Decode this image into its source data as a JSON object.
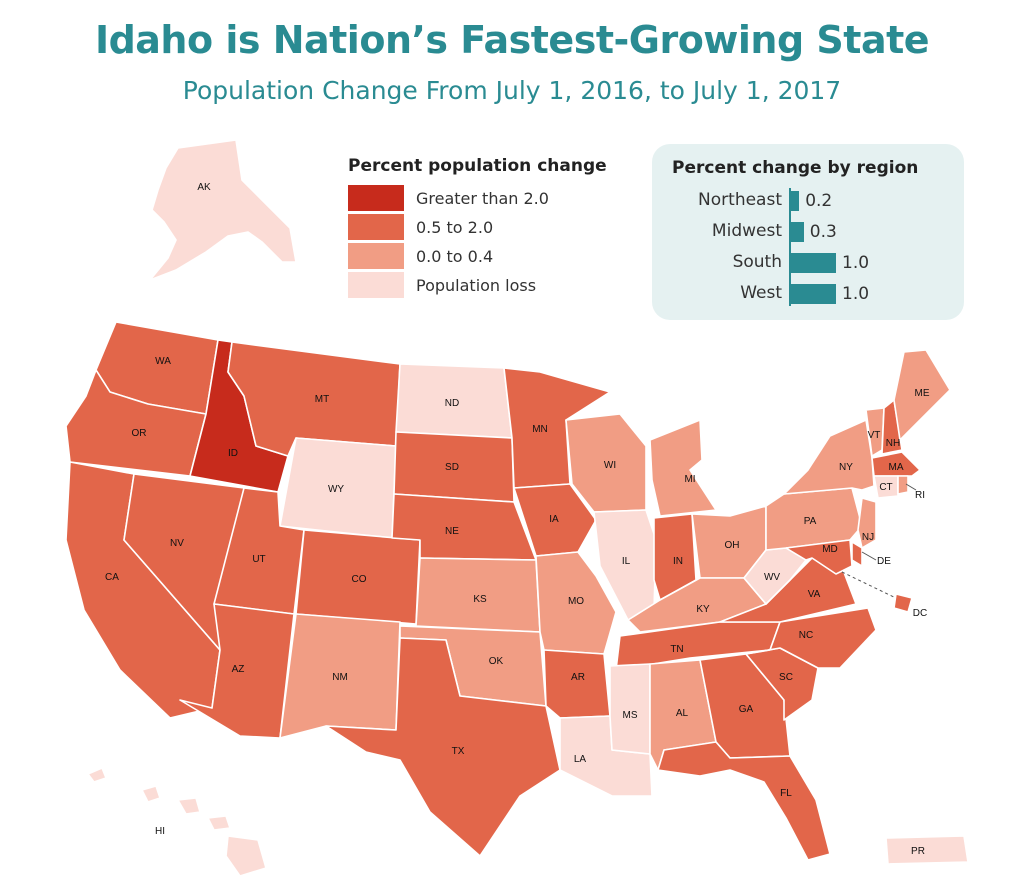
{
  "title": "Idaho is Nation’s Fastest-Growing State",
  "subtitle": "Population Change From July 1, 2016, to July 1, 2017",
  "colors": {
    "greater_than_2": "#c72b1c",
    "half_to_2": "#e2664a",
    "zero_to_04": "#f19d84",
    "loss": "#fbdcd6",
    "accent": "#2a8b92"
  },
  "legend": {
    "title": "Percent population change",
    "items": [
      {
        "label": "Greater than 2.0",
        "color": "#c72b1c"
      },
      {
        "label": "0.5 to 2.0",
        "color": "#e2664a"
      },
      {
        "label": "0.0 to 0.4",
        "color": "#f19d84"
      },
      {
        "label": "Population loss",
        "color": "#fbdcd6"
      }
    ]
  },
  "regions": {
    "title": "Percent change by region",
    "items": [
      {
        "name": "Northeast",
        "value": "0.2",
        "pct": 0.2
      },
      {
        "name": "Midwest",
        "value": "0.3",
        "pct": 0.3
      },
      {
        "name": "South",
        "value": "1.0",
        "pct": 1.0
      },
      {
        "name": "West",
        "value": "1.0",
        "pct": 1.0
      }
    ]
  },
  "states": {
    "AK": {
      "label": "AK",
      "class": "loss"
    },
    "HI": {
      "label": "HI",
      "class": "loss"
    },
    "WA": {
      "label": "WA",
      "class": "half_to_2"
    },
    "OR": {
      "label": "OR",
      "class": "half_to_2"
    },
    "CA": {
      "label": "CA",
      "class": "half_to_2"
    },
    "ID": {
      "label": "ID",
      "class": "greater_than_2"
    },
    "NV": {
      "label": "NV",
      "class": "half_to_2"
    },
    "MT": {
      "label": "MT",
      "class": "half_to_2"
    },
    "WY": {
      "label": "WY",
      "class": "loss"
    },
    "UT": {
      "label": "UT",
      "class": "half_to_2"
    },
    "AZ": {
      "label": "AZ",
      "class": "half_to_2"
    },
    "CO": {
      "label": "CO",
      "class": "half_to_2"
    },
    "NM": {
      "label": "NM",
      "class": "zero_to_04"
    },
    "ND": {
      "label": "ND",
      "class": "loss"
    },
    "SD": {
      "label": "SD",
      "class": "half_to_2"
    },
    "NE": {
      "label": "NE",
      "class": "half_to_2"
    },
    "KS": {
      "label": "KS",
      "class": "zero_to_04"
    },
    "OK": {
      "label": "OK",
      "class": "zero_to_04"
    },
    "TX": {
      "label": "TX",
      "class": "half_to_2"
    },
    "MN": {
      "label": "MN",
      "class": "half_to_2"
    },
    "IA": {
      "label": "IA",
      "class": "half_to_2"
    },
    "MO": {
      "label": "MO",
      "class": "zero_to_04"
    },
    "AR": {
      "label": "AR",
      "class": "half_to_2"
    },
    "LA": {
      "label": "LA",
      "class": "loss"
    },
    "WI": {
      "label": "WI",
      "class": "zero_to_04"
    },
    "IL": {
      "label": "IL",
      "class": "loss"
    },
    "MI": {
      "label": "MI",
      "class": "zero_to_04"
    },
    "IN": {
      "label": "IN",
      "class": "half_to_2"
    },
    "OH": {
      "label": "OH",
      "class": "zero_to_04"
    },
    "KY": {
      "label": "KY",
      "class": "zero_to_04"
    },
    "TN": {
      "label": "TN",
      "class": "half_to_2"
    },
    "MS": {
      "label": "MS",
      "class": "loss"
    },
    "AL": {
      "label": "AL",
      "class": "zero_to_04"
    },
    "GA": {
      "label": "GA",
      "class": "half_to_2"
    },
    "FL": {
      "label": "FL",
      "class": "half_to_2"
    },
    "SC": {
      "label": "SC",
      "class": "half_to_2"
    },
    "NC": {
      "label": "NC",
      "class": "half_to_2"
    },
    "VA": {
      "label": "VA",
      "class": "half_to_2"
    },
    "WV": {
      "label": "WV",
      "class": "loss"
    },
    "PA": {
      "label": "PA",
      "class": "zero_to_04"
    },
    "NY": {
      "label": "NY",
      "class": "zero_to_04"
    },
    "VT": {
      "label": "VT",
      "class": "zero_to_04"
    },
    "NH": {
      "label": "NH",
      "class": "half_to_2"
    },
    "ME": {
      "label": "ME",
      "class": "zero_to_04"
    },
    "MA": {
      "label": "MA",
      "class": "half_to_2"
    },
    "RI": {
      "label": "RI",
      "class": "zero_to_04"
    },
    "CT": {
      "label": "CT",
      "class": "loss"
    },
    "NJ": {
      "label": "NJ",
      "class": "zero_to_04"
    },
    "DE": {
      "label": "DE",
      "class": "half_to_2"
    },
    "MD": {
      "label": "MD",
      "class": "half_to_2"
    },
    "DC": {
      "label": "DC",
      "class": "half_to_2"
    },
    "PR": {
      "label": "PR",
      "class": "loss"
    }
  }
}
